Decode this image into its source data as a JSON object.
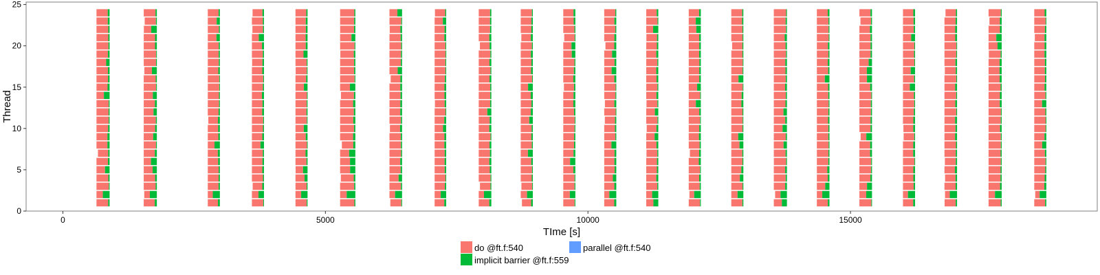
{
  "chart_data": {
    "type": "bar",
    "title": "",
    "xlabel": "TIme [s]",
    "ylabel": "Thread",
    "xlim": [
      -700,
      19700
    ],
    "ylim": [
      0,
      25.3
    ],
    "xticks": [
      0,
      5000,
      10000,
      15000
    ],
    "xtick_labels": [
      "0",
      "5000",
      "10000",
      "15000"
    ],
    "yticks": [
      0,
      5,
      10,
      15,
      20,
      25
    ],
    "ytick_labels": [
      "0",
      "5",
      "10",
      "15",
      "20",
      "25"
    ],
    "threads": {
      "min": 1,
      "max": 24
    },
    "grid": false,
    "legend_position": "bottom",
    "series": [
      {
        "name": "do @ft.f:540",
        "color": "#F8766D"
      },
      {
        "name": "implicit barrier @ft.f:559",
        "color": "#00BA38"
      },
      {
        "name": "parallel @ft.f:540",
        "color": "#619CFF"
      }
    ],
    "phases": [
      {
        "start": 640,
        "end": 890
      },
      {
        "start": 1540,
        "end": 1790
      },
      {
        "start": 2760,
        "end": 2990
      },
      {
        "start": 3600,
        "end": 3830
      },
      {
        "start": 4430,
        "end": 4660
      },
      {
        "start": 5280,
        "end": 5570
      },
      {
        "start": 6220,
        "end": 6460
      },
      {
        "start": 7080,
        "end": 7300
      },
      {
        "start": 7920,
        "end": 8160
      },
      {
        "start": 8720,
        "end": 8950
      },
      {
        "start": 9530,
        "end": 9760
      },
      {
        "start": 10310,
        "end": 10540
      },
      {
        "start": 11110,
        "end": 11340
      },
      {
        "start": 11920,
        "end": 12150
      },
      {
        "start": 12730,
        "end": 12960
      },
      {
        "start": 13540,
        "end": 13790
      },
      {
        "start": 14360,
        "end": 14600
      },
      {
        "start": 15170,
        "end": 15410
      },
      {
        "start": 16000,
        "end": 16230
      },
      {
        "start": 16790,
        "end": 17030
      },
      {
        "start": 17630,
        "end": 17880
      },
      {
        "start": 18500,
        "end": 18730
      }
    ]
  },
  "legend": {
    "do": "do @ft.f:540",
    "barrier": "implicit barrier @ft.f:559",
    "parallel": "parallel @ft.f:540"
  }
}
